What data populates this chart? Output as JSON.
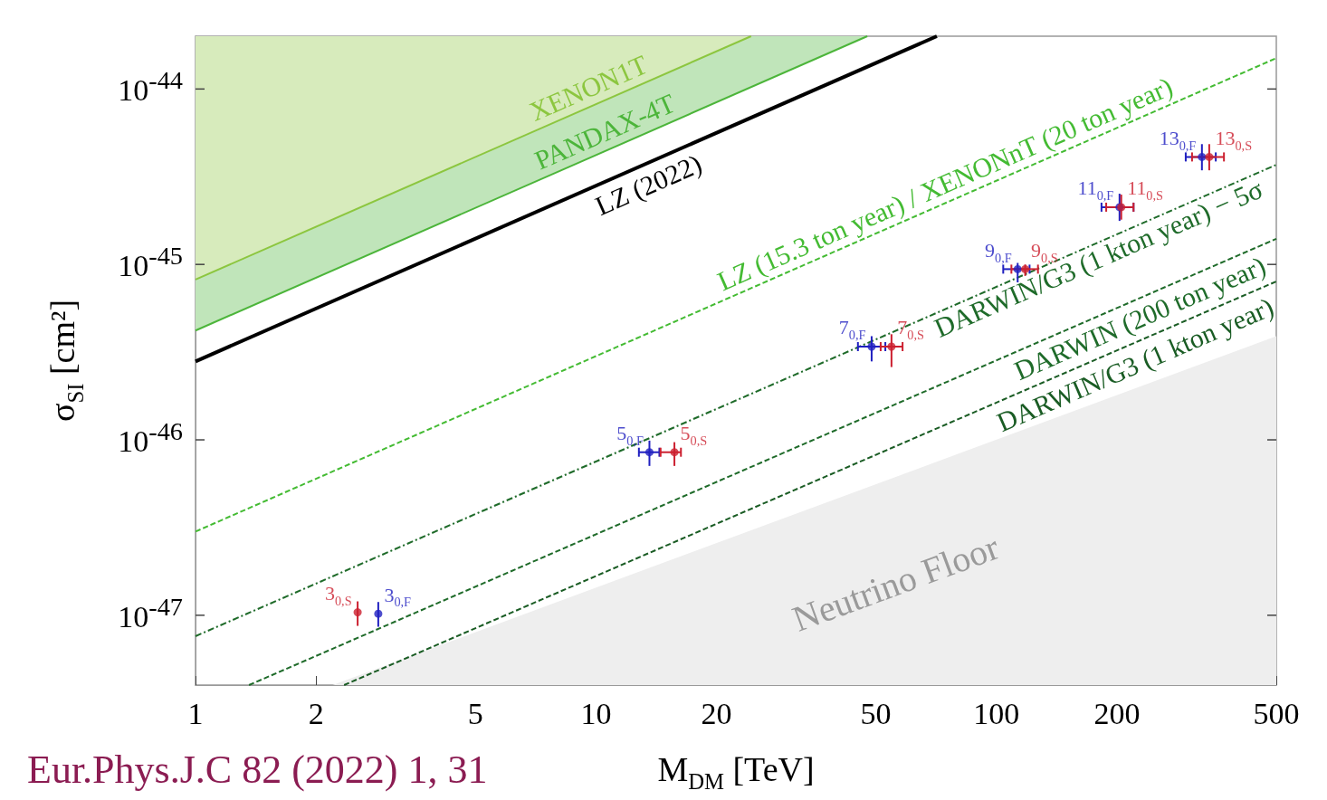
{
  "chart_data": {
    "type": "line",
    "log": "xy",
    "xlabel": "M$_{DM}$ [TeV]",
    "ylabel": "σ$_{SI}$ [cm²]",
    "xlim": [
      1,
      500
    ],
    "ylim": [
      4e-48,
      2e-44
    ],
    "xticks": [
      1,
      2,
      5,
      10,
      20,
      50,
      100,
      200,
      500
    ],
    "yticks": [
      {
        "value": 1e-47,
        "label": "10$^{-47}$"
      },
      {
        "value": 1e-46,
        "label": "10$^{-46}$"
      },
      {
        "value": 1e-45,
        "label": "10$^{-45}$"
      },
      {
        "value": 1e-44,
        "label": "10$^{-44}$"
      }
    ],
    "annotations": [
      "Eur.Phys.J.C 82 (2022) 1, 31"
    ],
    "series": [
      {
        "name": "XENON1T",
        "type": "area",
        "color": "#8cc63f",
        "x": [
          1,
          24.4
        ],
        "values": [
          8.2e-46,
          2e-44
        ]
      },
      {
        "name": "PANDAX-4T",
        "type": "area",
        "color": "#4cb53a",
        "x": [
          1,
          47.6
        ],
        "values": [
          4.2e-46,
          2e-44
        ]
      },
      {
        "name": "LZ (2022)",
        "color": "#000000",
        "line_style": "solid",
        "x": [
          1,
          71
        ],
        "values": [
          2.8e-46,
          2e-44
        ]
      },
      {
        "name": "LZ (15.3 ton year) / XENONnT (20 ton year)",
        "color": "#44bb33",
        "line_style": "dashed",
        "x": [
          1,
          500
        ],
        "values": [
          3e-47,
          1.5e-44
        ]
      },
      {
        "name": "DARWIN/G3 (1 kton year) − 5σ",
        "color": "#1f6b2a",
        "line_style": "dashdot",
        "x": [
          1,
          500
        ],
        "values": [
          7.6e-48,
          3.7e-45
        ]
      },
      {
        "name": "DARWIN (200 ton year)",
        "color": "#1f6b2a",
        "line_style": "dashed",
        "x": [
          1.36,
          500
        ],
        "values": [
          4e-48,
          1.4e-45
        ]
      },
      {
        "name": "DARWIN/G3 (1 kton year)",
        "color": "#1a5c24",
        "line_style": "dashed",
        "x": [
          2.35,
          500
        ],
        "values": [
          4e-48,
          8e-46
        ]
      },
      {
        "name": "Neutrino Floor",
        "type": "area",
        "color": "#eeeeee",
        "x": [
          2.2,
          500
        ],
        "values": [
          4e-48,
          3.9e-46
        ]
      },
      {
        "type": "scatter",
        "marker": "circle",
        "color": "#2020c0",
        "x": [
          2.86,
          13.6,
          48.8,
          113,
          203,
          326
        ],
        "values": [
          1.02e-47,
          8.5e-47,
          3.4e-46,
          9.4e-46,
          2.12e-45,
          4.1e-45
        ],
        "xerrors": [
          null,
          [
            12.8,
            14.4
          ],
          [
            45.1,
            52.8
          ],
          [
            104,
            121
          ],
          [
            183,
            220
          ],
          [
            297,
            353
          ]
        ],
        "errors": [
          [
            8.6e-48,
            1.19e-47
          ],
          [
            7.1e-47,
            9.9e-47
          ],
          [
            2.8e-46,
            3.9e-46
          ],
          [
            7.9e-46,
            1.02e-45
          ],
          [
            1.77e-45,
            2.53e-45
          ],
          [
            3.44e-45,
            4.85e-45
          ]
        ],
        "value_labels": [
          "3$_{0,F}$",
          "5$_{0,F}$",
          "7$_{0,F}$",
          "9$_{0,F}$",
          "11$_{0,F}$",
          "13$_{0,F}$"
        ]
      },
      {
        "type": "scatter",
        "marker": "circle",
        "color": "#cc2030",
        "x": [
          2.54,
          15.7,
          54.7,
          118,
          205,
          340
        ],
        "values": [
          1.04e-47,
          8.5e-47,
          3.4e-46,
          9.4e-46,
          2.12e-45,
          4.1e-45
        ],
        "xerrors": [
          null,
          [
            14.5,
            16.3
          ],
          [
            51.4,
            58.3
          ],
          [
            109,
            127
          ],
          [
            188,
            220
          ],
          [
            308,
            370
          ]
        ],
        "errors": [
          [
            8.7e-48,
            1.2e-47
          ],
          [
            7.1e-47,
            9.7e-47
          ],
          [
            2.6e-46,
            4e-46
          ],
          [
            8.6e-46,
            1e-45
          ],
          [
            1.8e-45,
            2.5e-45
          ],
          [
            3.44e-45,
            4.85e-45
          ]
        ],
        "value_labels": [
          "3$_{0,S}$",
          "5$_{0,S}$",
          "7$_{0,S}$",
          "9$_{0,S}$",
          "11$_{0,S}$",
          "13$_{0,S}$"
        ]
      }
    ]
  }
}
